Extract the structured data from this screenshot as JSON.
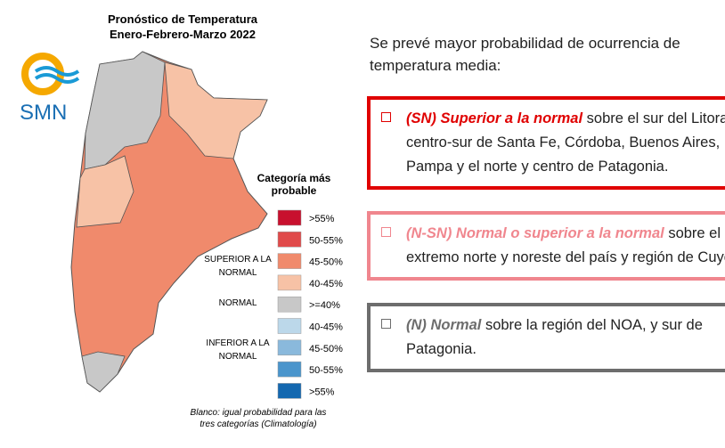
{
  "header": {
    "title": "Pronóstico de Temperatura",
    "subtitle": "Enero-Febrero-Marzo 2022",
    "logo": "SMN"
  },
  "legend": {
    "title": "Categoría más probable",
    "items": [
      {
        "label": ">55%",
        "color": "#c8102e"
      },
      {
        "label": "50-55%",
        "color": "#e04a4a"
      },
      {
        "label": "45-50%",
        "color": "#f08a6c"
      },
      {
        "label": "40-45%",
        "color": "#f7c2a6"
      },
      {
        "label": ">=40%",
        "color": "#c8c8c8"
      },
      {
        "label": "40-45%",
        "color": "#bcd8ea"
      },
      {
        "label": "45-50%",
        "color": "#8ab9dc"
      },
      {
        "label": "50-55%",
        "color": "#4a95cc"
      },
      {
        "label": ">55%",
        "color": "#1468b0"
      }
    ],
    "groups": [
      "SUPERIOR A LA NORMAL",
      "NORMAL",
      "INFERIOR A LA NORMAL"
    ],
    "note": "Blanco: igual probabilidad para las tres categorías (Climatología)"
  },
  "intro": "Se prevé mayor probabilidad de ocurrencia de temperatura media:",
  "boxes": [
    {
      "lead": "(SN) Superior a la normal",
      "text": "sobre el sur del Litoral, centro-sur de Santa Fe, Córdoba, Buenos Aires, La Pampa y el norte y centro de Patagonia.",
      "color": "#e00000"
    },
    {
      "lead": "(N-SN) Normal o superior a la normal",
      "text": "sobre el extremo norte y noreste del país y región de Cuyo.",
      "color": "#f0868e"
    },
    {
      "lead": "(N) Normal",
      "text": "sobre la región del NOA, y sur de Patagonia.",
      "color": "#6d6d6d"
    }
  ]
}
